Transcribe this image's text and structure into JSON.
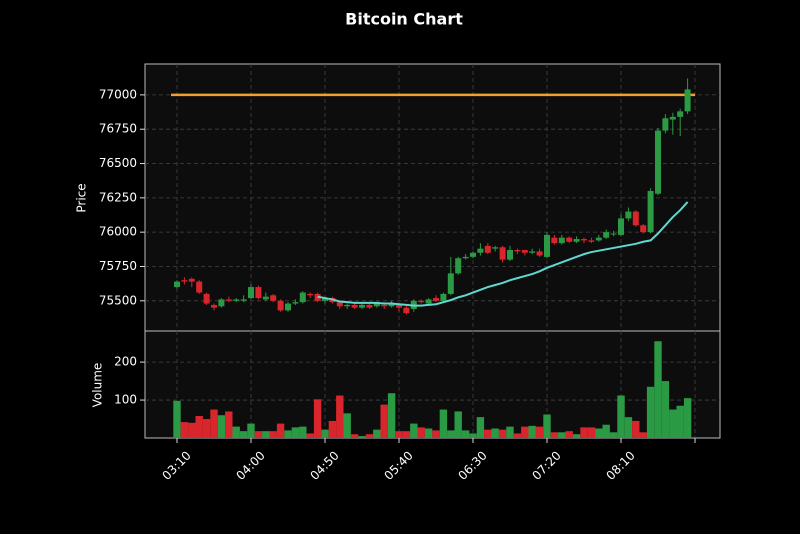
{
  "chart_data": {
    "type": "candlestick",
    "title": "Bitcoin Chart",
    "ylabel": "Price",
    "volume_label": "Volume",
    "categories": [
      "03:10",
      null,
      null,
      null,
      null,
      null,
      null,
      null,
      null,
      null,
      "04:00",
      null,
      null,
      null,
      null,
      null,
      null,
      null,
      null,
      null,
      "04:50",
      null,
      null,
      null,
      null,
      null,
      null,
      null,
      null,
      null,
      "05:40",
      null,
      null,
      null,
      null,
      null,
      null,
      null,
      null,
      null,
      "06:30",
      null,
      null,
      null,
      null,
      null,
      null,
      null,
      null,
      null,
      "07:20",
      null,
      null,
      null,
      null,
      null,
      null,
      null,
      null,
      null,
      "08:10",
      null,
      null,
      null,
      null,
      null,
      null,
      null,
      null,
      null
    ],
    "open": [
      75600,
      75650,
      75660,
      75640,
      75550,
      75470,
      75460,
      75510,
      75500,
      75500,
      75520,
      75600,
      75510,
      75540,
      75500,
      75430,
      75480,
      75490,
      75550,
      75550,
      75500,
      75520,
      75490,
      75460,
      75470,
      75450,
      75470,
      75460,
      75470,
      75460,
      75470,
      75450,
      75440,
      75500,
      75480,
      75520,
      75500,
      75550,
      75700,
      75810,
      75820,
      75850,
      75900,
      75880,
      75890,
      75800,
      75870,
      75870,
      75850,
      75860,
      75820,
      75960,
      75920,
      75960,
      75930,
      75950,
      75940,
      75940,
      75960,
      75990,
      75980,
      76100,
      76150,
      76050,
      76000,
      76280,
      76740,
      76820,
      76840,
      76880
    ],
    "high": [
      75650,
      75670,
      75670,
      75650,
      75560,
      75480,
      75520,
      75530,
      75520,
      75540,
      75620,
      75610,
      75560,
      75550,
      75510,
      75490,
      75510,
      75570,
      75560,
      75560,
      75530,
      75530,
      75500,
      75480,
      75480,
      75490,
      75490,
      75490,
      75480,
      75500,
      75480,
      75470,
      75510,
      75510,
      75520,
      75540,
      75560,
      75820,
      75820,
      75840,
      75860,
      75920,
      75920,
      75900,
      75900,
      75900,
      75880,
      75870,
      75880,
      75880,
      76000,
      75980,
      75980,
      75970,
      75970,
      75960,
      75960,
      75980,
      76020,
      76010,
      76130,
      76180,
      76160,
      76060,
      76320,
      76760,
      76860,
      76870,
      76900,
      77120
    ],
    "low": [
      75590,
      75620,
      75600,
      75550,
      75470,
      75430,
      75450,
      75490,
      75490,
      75490,
      75510,
      75510,
      75500,
      75490,
      75420,
      75420,
      75470,
      75480,
      75520,
      75490,
      75480,
      75480,
      75440,
      75440,
      75440,
      75440,
      75440,
      75450,
      75440,
      75450,
      75420,
      75400,
      75420,
      75480,
      75470,
      75490,
      75490,
      75540,
      75690,
      75800,
      75810,
      75830,
      75840,
      75860,
      75780,
      75790,
      75840,
      75830,
      75840,
      75820,
      75810,
      75910,
      75910,
      75920,
      75920,
      75920,
      75920,
      75930,
      75950,
      75970,
      75970,
      76080,
      76040,
      75990,
      75990,
      76270,
      76720,
      76710,
      76700,
      76860
    ],
    "close": [
      75640,
      75640,
      75640,
      75560,
      75480,
      75450,
      75510,
      75500,
      75510,
      75510,
      75600,
      75520,
      75530,
      75500,
      75430,
      75480,
      75490,
      75560,
      75540,
      75500,
      75520,
      75490,
      75460,
      75470,
      75450,
      75470,
      75450,
      75480,
      75460,
      75480,
      75450,
      75410,
      75500,
      75490,
      75510,
      75500,
      75550,
      75700,
      75810,
      75820,
      75850,
      75880,
      75850,
      75890,
      75800,
      75870,
      75860,
      75850,
      75860,
      75830,
      75980,
      75920,
      75960,
      75930,
      75950,
      75940,
      75930,
      75960,
      76000,
      75990,
      76100,
      76150,
      76050,
      76000,
      76300,
      76740,
      76830,
      76840,
      76880,
      77040
    ],
    "volume": [
      98,
      42,
      40,
      58,
      50,
      75,
      60,
      70,
      30,
      18,
      38,
      18,
      18,
      18,
      38,
      20,
      28,
      30,
      12,
      102,
      22,
      45,
      112,
      65,
      10,
      5,
      10,
      22,
      88,
      118,
      18,
      18,
      38,
      28,
      25,
      20,
      75,
      20,
      70,
      20,
      12,
      55,
      22,
      25,
      22,
      30,
      12,
      30,
      32,
      30,
      62,
      15,
      15,
      18,
      10,
      28,
      28,
      25,
      35,
      15,
      112,
      55,
      45,
      15,
      135,
      255,
      150,
      75,
      85,
      105
    ],
    "ma": {
      "color": "#5fd9cf",
      "values": [
        null,
        null,
        null,
        null,
        null,
        null,
        null,
        null,
        null,
        null,
        null,
        null,
        null,
        null,
        null,
        null,
        null,
        null,
        null,
        75530,
        75520,
        75510,
        75495,
        75490,
        75485,
        75485,
        75485,
        75485,
        75480,
        75480,
        75475,
        75470,
        75465,
        75465,
        75470,
        75475,
        75490,
        75505,
        75525,
        75540,
        75560,
        75580,
        75600,
        75615,
        75630,
        75650,
        75665,
        75680,
        75695,
        75715,
        75740,
        75760,
        75780,
        75800,
        75820,
        75840,
        75855,
        75865,
        75875,
        75885,
        75895,
        75905,
        75915,
        75930,
        75940,
        75990,
        76050,
        76110,
        76160,
        76220
      ]
    },
    "hline": {
      "value": 77000,
      "color": "#f0a030"
    },
    "up_color": "#2b9a45",
    "down_color": "#d9262c",
    "ylim": [
      75280,
      77225
    ],
    "yticks": [
      75500,
      75750,
      76000,
      76250,
      76500,
      76750,
      77000
    ],
    "volume_ylim": [
      0,
      282
    ],
    "volume_yticks": [
      100,
      200
    ],
    "xticks": [
      0,
      10,
      20,
      30,
      40,
      50,
      60,
      70
    ],
    "grid": true
  }
}
